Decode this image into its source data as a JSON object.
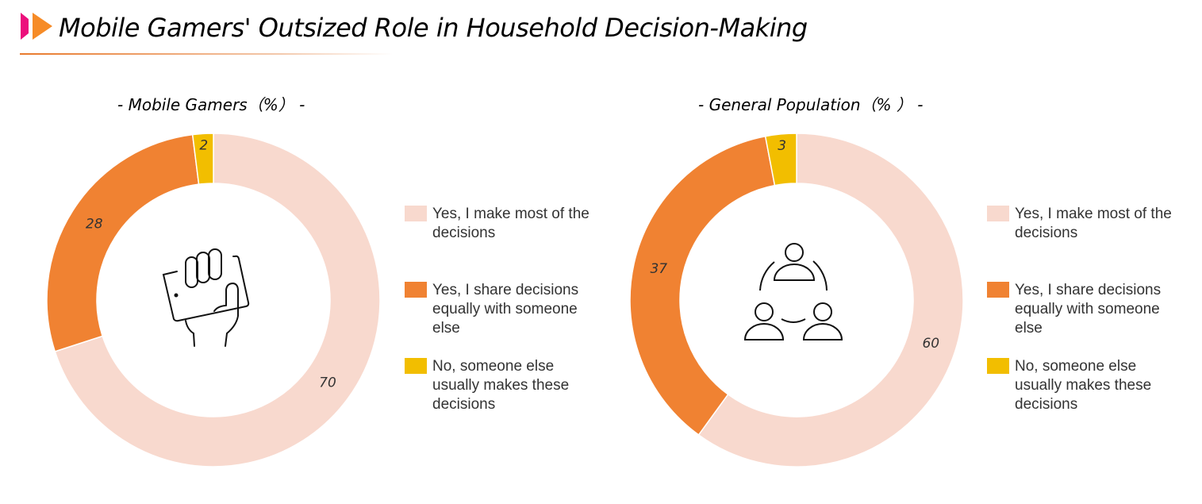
{
  "header": {
    "title": "Mobile Gamers' Outsized Role in Household Decision-Making",
    "accent_colors": [
      "#EC0F7C",
      "#F68B27"
    ]
  },
  "colors": {
    "most": "#F8D9CE",
    "share": "#F08232",
    "someone_else": "#F2BE00"
  },
  "chart_data": [
    {
      "type": "pie",
      "donut": true,
      "title": "- Mobile Gamers（%） -",
      "center_icon": "hand-holding-phone-icon",
      "categories": [
        "Yes, I make most of the decisions",
        "Yes, I share decisions equally with someone else",
        "No, someone else usually makes these decisions"
      ],
      "values": [
        70,
        28,
        2
      ],
      "legend": "right"
    },
    {
      "type": "pie",
      "donut": true,
      "title": "- General Population（% ） -",
      "center_icon": "people-group-icon",
      "categories": [
        "Yes, I make most of the decisions",
        "Yes, I share decisions equally with someone else",
        "No, someone else usually makes these decisions"
      ],
      "values": [
        60,
        37,
        3
      ],
      "legend": "right"
    }
  ]
}
